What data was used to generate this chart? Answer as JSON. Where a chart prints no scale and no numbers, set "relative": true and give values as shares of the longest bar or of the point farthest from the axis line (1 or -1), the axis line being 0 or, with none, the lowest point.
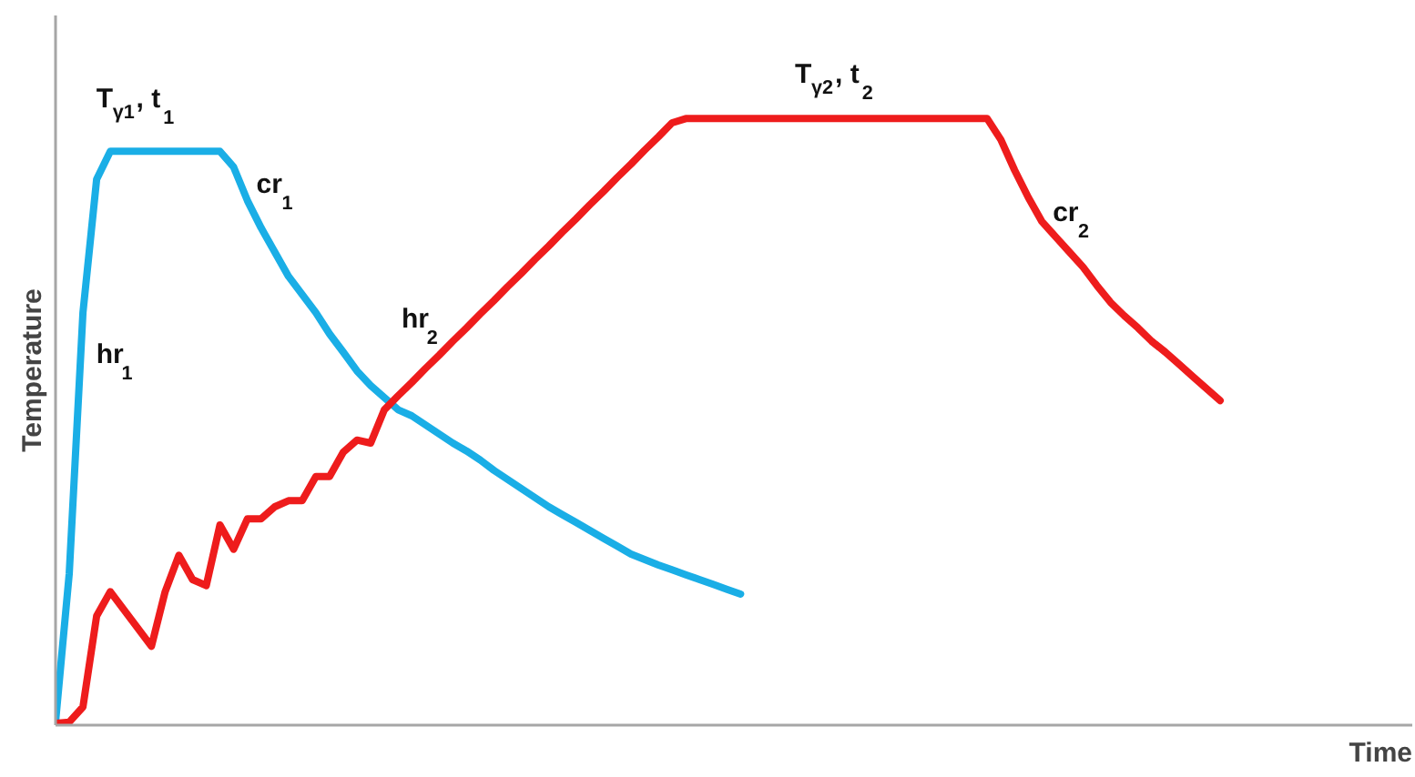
{
  "chart_data": {
    "type": "line",
    "relative": true,
    "xlabel": "Time",
    "ylabel": "Temperature",
    "categories": [
      null,
      null,
      null,
      null,
      null,
      null,
      null,
      null,
      null,
      null,
      null,
      null,
      null,
      null,
      null,
      null,
      null,
      null,
      null,
      null,
      null,
      null,
      null,
      null,
      null,
      null,
      null,
      null,
      null,
      null,
      null,
      null,
      null,
      null,
      null,
      null,
      null,
      null,
      null,
      null,
      null,
      null,
      null,
      null,
      null,
      null,
      null,
      null,
      null,
      null,
      null,
      null,
      null,
      null,
      null,
      null,
      null,
      null,
      null,
      null,
      null,
      null,
      null,
      null,
      null,
      null,
      null,
      null,
      null,
      null,
      null,
      null,
      null,
      null,
      null,
      null,
      null,
      null,
      null,
      null,
      null,
      null,
      null,
      null,
      null,
      null
    ],
    "marker": "none",
    "line_style": "solid",
    "series": [
      {
        "color": "#1aaee6",
        "values": [
          0.005,
          0.25,
          0.68,
          0.9,
          0.946,
          0.946,
          0.946,
          0.946,
          0.946,
          0.946,
          0.946,
          0.946,
          0.946,
          0.92,
          0.865,
          0.82,
          0.78,
          0.74,
          0.71,
          0.68,
          0.645,
          0.615,
          0.584,
          0.56,
          0.54,
          0.52,
          0.51,
          0.495,
          0.48,
          0.465,
          0.452,
          0.437,
          0.42,
          0.405,
          0.39,
          0.375,
          0.36,
          0.347,
          0.334,
          0.321,
          0.308,
          0.295,
          0.282,
          0.273,
          0.264,
          0.256,
          0.248,
          0.24,
          0.232,
          0.224,
          0.216,
          null,
          null,
          null,
          null,
          null,
          null,
          null,
          null,
          null,
          null,
          null,
          null,
          null,
          null,
          null,
          null,
          null,
          null,
          null,
          null,
          null,
          null,
          null,
          null,
          null,
          null,
          null,
          null,
          null,
          null,
          null,
          null,
          null,
          null,
          null
        ]
      },
      {
        "color": "#ee1c1c",
        "values": [
          0.003,
          0.005,
          0.03,
          0.18,
          0.22,
          0.19,
          0.16,
          0.13,
          0.22,
          0.28,
          0.24,
          0.23,
          0.33,
          0.29,
          0.34,
          0.34,
          0.36,
          0.37,
          0.37,
          0.41,
          0.41,
          0.45,
          0.47,
          0.465,
          0.52,
          0.543,
          0.565,
          0.588,
          0.61,
          0.633,
          0.655,
          0.678,
          0.7,
          0.723,
          0.745,
          0.768,
          0.79,
          0.813,
          0.835,
          0.858,
          0.88,
          0.903,
          0.925,
          0.948,
          0.97,
          0.993,
          1.0,
          1.0,
          1.0,
          1.0,
          1.0,
          1.0,
          1.0,
          1.0,
          1.0,
          1.0,
          1.0,
          1.0,
          1.0,
          1.0,
          1.0,
          1.0,
          1.0,
          1.0,
          1.0,
          1.0,
          1.0,
          1.0,
          1.0,
          0.965,
          0.915,
          0.87,
          0.83,
          0.805,
          0.78,
          0.755,
          0.725,
          0.697,
          0.675,
          0.655,
          0.633,
          0.615,
          0.595,
          0.575,
          0.555,
          0.535
        ]
      }
    ],
    "annotations": [
      "hr$_{1}$",
      "T$_{γ1}$, t$_{1}$",
      "cr$_{1}$",
      "hr$_{2}$",
      "T$_{γ2}$, t$_{2}$",
      "cr$_{2}$"
    ]
  }
}
